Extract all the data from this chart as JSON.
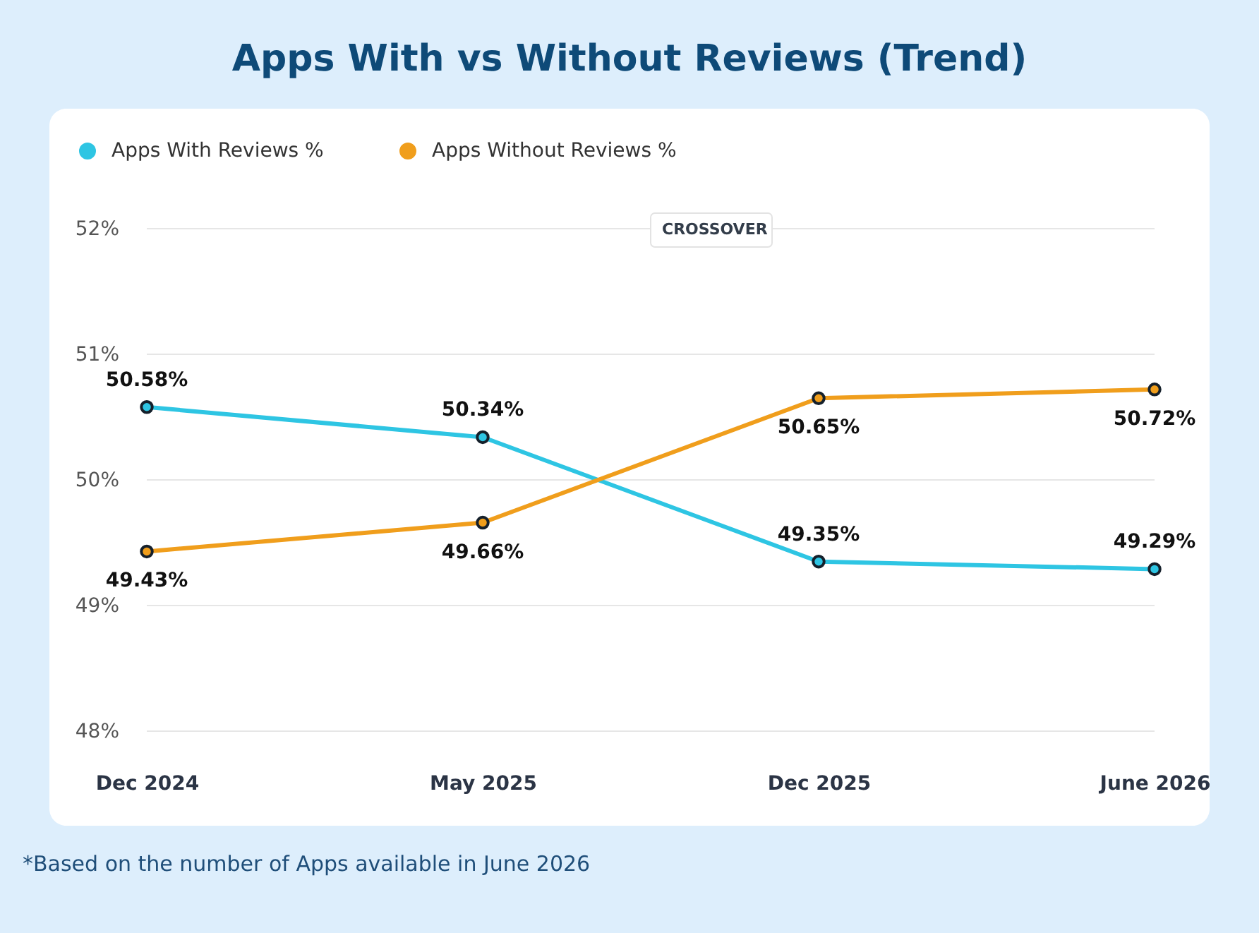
{
  "chart_data": {
    "type": "line",
    "title": "Apps With vs Without Reviews (Trend)",
    "categories": [
      "Dec 2024",
      "May 2025",
      "Dec 2025",
      "June 2026"
    ],
    "series": [
      {
        "name": "Apps With Reviews %",
        "color": "#2ec5e3",
        "values": [
          50.58,
          50.34,
          49.35,
          49.29
        ],
        "value_labels": [
          "50.58%",
          "50.34%",
          "49.35%",
          "49.29%"
        ]
      },
      {
        "name": "Apps Without Reviews %",
        "color": "#f09e1c",
        "values": [
          49.43,
          49.66,
          50.65,
          50.72
        ],
        "value_labels": [
          "49.43%",
          "49.66%",
          "50.65%",
          "50.72%"
        ]
      }
    ],
    "ylim": [
      48,
      52
    ],
    "yticks": [
      {
        "value": 48,
        "label": "48%"
      },
      {
        "value": 49,
        "label": "49%"
      },
      {
        "value": 50,
        "label": "50%"
      },
      {
        "value": 51,
        "label": "51%"
      },
      {
        "value": 52,
        "label": "52%"
      }
    ],
    "grid": "y",
    "legend": "top left",
    "marker": "circle",
    "line_style": "solid",
    "annotations": [
      {
        "text": "CROSSOVER"
      },
      "*Based on the number of Apps available in June 2026"
    ]
  }
}
